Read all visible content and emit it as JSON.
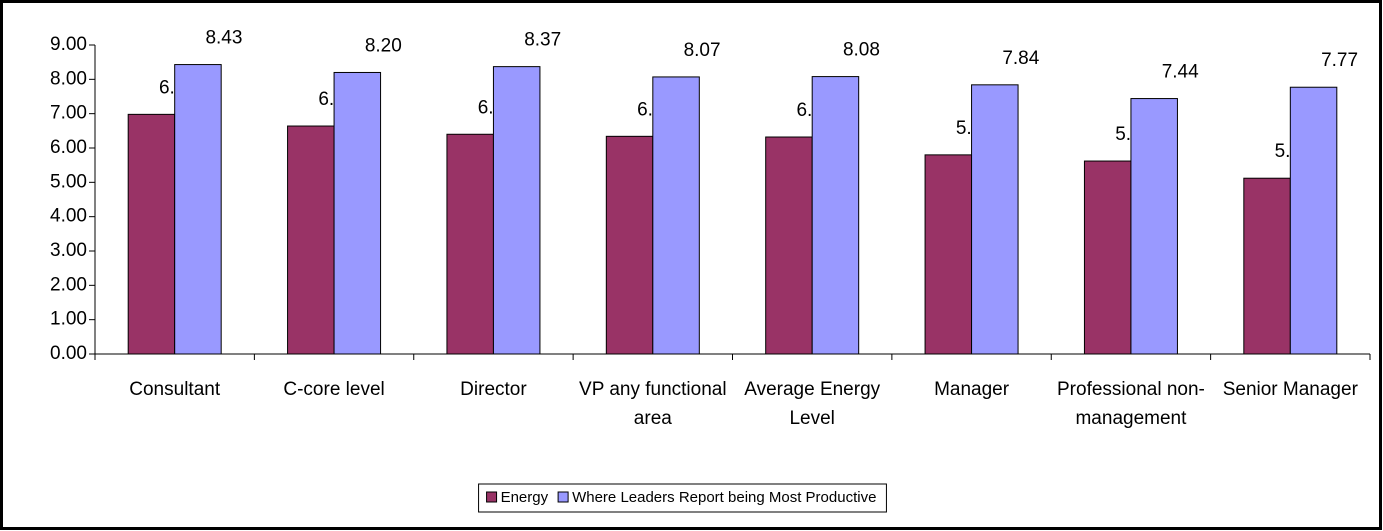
{
  "chart_data": {
    "type": "bar",
    "categories": [
      "Consultant",
      "C-core level",
      "Director",
      "VP any functional area",
      "Average Energy Level",
      "Manager",
      "Professional non-management",
      "Senior Manager"
    ],
    "series": [
      {
        "name": "Energy",
        "color": "#993366",
        "values": [
          6.98,
          6.64,
          6.4,
          6.34,
          6.32,
          5.8,
          5.62,
          5.12
        ],
        "value_labels": [
          "6.98",
          "6.64",
          "6.40",
          "6.34",
          "6.32",
          "5.80",
          "5.62",
          "5.12"
        ]
      },
      {
        "name": "Where Leaders Report being Most Productive",
        "color": "#9999ff",
        "values": [
          8.43,
          8.2,
          8.37,
          8.07,
          8.08,
          7.84,
          7.44,
          7.77
        ],
        "value_labels": [
          "8.43",
          "8.20",
          "8.37",
          "8.07",
          "8.08",
          "7.84",
          "7.44",
          "7.77"
        ]
      }
    ],
    "ylim": [
      0,
      9
    ],
    "yticks": [
      {
        "value": 0,
        "label": "0.00"
      },
      {
        "value": 1,
        "label": "1.00"
      },
      {
        "value": 2,
        "label": "2.00"
      },
      {
        "value": 3,
        "label": "3.00"
      },
      {
        "value": 4,
        "label": "4.00"
      },
      {
        "value": 5,
        "label": "5.00"
      },
      {
        "value": 6,
        "label": "6.00"
      },
      {
        "value": 7,
        "label": "7.00"
      },
      {
        "value": 8,
        "label": "8.00"
      },
      {
        "value": 9,
        "label": "9.00"
      }
    ],
    "legend": "bottom"
  }
}
